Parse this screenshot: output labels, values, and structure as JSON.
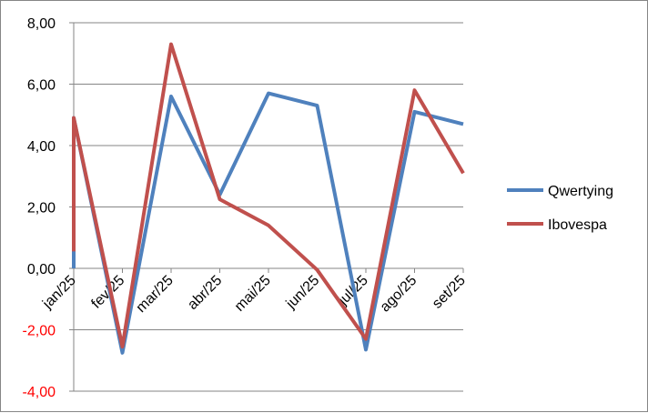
{
  "chart_data": {
    "type": "line",
    "categories": [
      "jan/25",
      "fev/25",
      "mar/25",
      "abr/25",
      "mai/25",
      "jun/25",
      "jul/25",
      "ago/25",
      "set/25"
    ],
    "series": [
      {
        "name": "Qwertying",
        "color": "#4F81BD",
        "values": [
          4.9,
          -2.75,
          5.6,
          2.4,
          5.7,
          5.3,
          -2.65,
          5.1,
          4.7
        ],
        "start_from": 0.0
      },
      {
        "name": "Ibovespa",
        "color": "#C0504D",
        "values": [
          4.9,
          -2.55,
          7.3,
          2.25,
          1.4,
          -0.05,
          -2.3,
          5.8,
          3.1
        ],
        "start_from": 0.55
      }
    ],
    "ylim": [
      -4,
      8
    ],
    "yticks": [
      -4,
      -2,
      0,
      2,
      4,
      6,
      8
    ],
    "ytick_labels": [
      "-4,00",
      "-2,00",
      "0,00",
      "2,00",
      "4,00",
      "6,00",
      "8,00"
    ],
    "negative_tick_color": "#FF0000",
    "grid": true,
    "legend_position": "right",
    "title": "",
    "xlabel": "",
    "ylabel": ""
  }
}
